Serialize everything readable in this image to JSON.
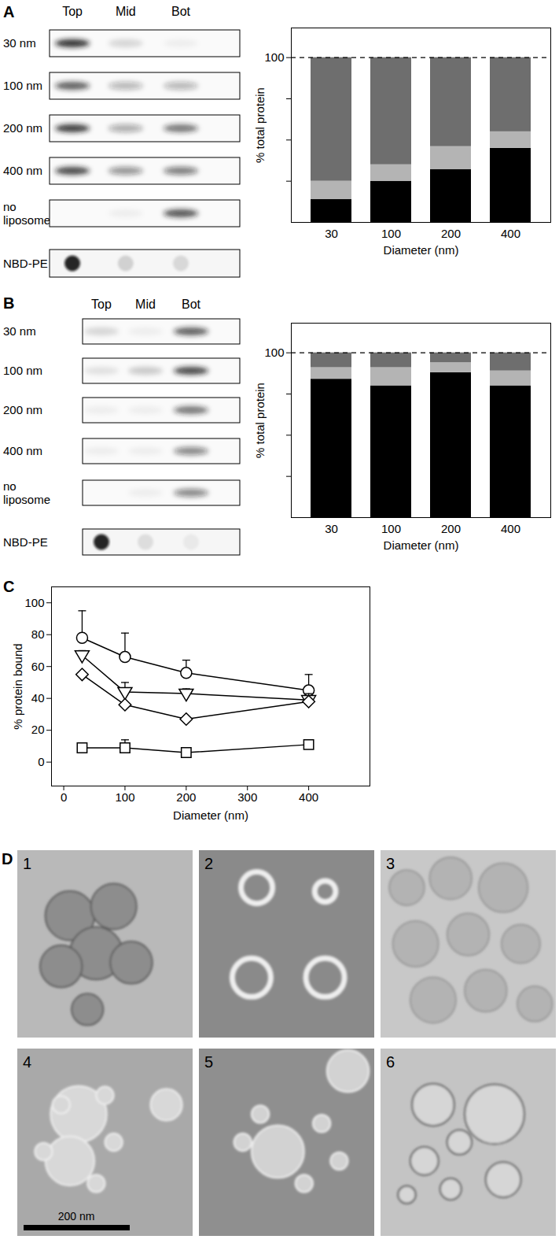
{
  "blots": [
    {
      "panel": "A",
      "columns": [
        "Top",
        "Mid",
        "Bot"
      ],
      "rows": [
        {
          "label": "30 nm",
          "bands": [
            0.9,
            0.15,
            0.05
          ]
        },
        {
          "label": "100 nm",
          "bands": [
            0.7,
            0.3,
            0.3
          ]
        },
        {
          "label": "200 nm",
          "bands": [
            0.85,
            0.35,
            0.6
          ]
        },
        {
          "label": "400 nm",
          "bands": [
            0.8,
            0.45,
            0.55
          ]
        },
        {
          "label": "no liposome",
          "bands": [
            0.0,
            0.05,
            0.75
          ]
        }
      ],
      "dots": {
        "label": "NBD-PE",
        "values": [
          0.9,
          0.15,
          0.12
        ]
      }
    },
    {
      "panel": "B",
      "columns": [
        "Top",
        "Mid",
        "Bot"
      ],
      "rows": [
        {
          "label": "30 nm",
          "bands": [
            0.15,
            0.05,
            0.7
          ]
        },
        {
          "label": "100 nm",
          "bands": [
            0.1,
            0.2,
            0.8
          ]
        },
        {
          "label": "200 nm",
          "bands": [
            0.05,
            0.05,
            0.6
          ]
        },
        {
          "label": "400 nm",
          "bands": [
            0.05,
            0.05,
            0.5
          ]
        },
        {
          "label": "no liposome",
          "bands": [
            0.0,
            0.05,
            0.5
          ]
        }
      ],
      "dots": {
        "label": "NBD-PE",
        "values": [
          0.9,
          0.1,
          0.05
        ]
      }
    }
  ],
  "chart_data": [
    {
      "panel": "A",
      "type": "bar",
      "stacked": true,
      "categories": [
        30,
        100,
        200,
        400
      ],
      "series": [
        {
          "color": "#000000",
          "values": [
            14,
            25,
            32,
            45
          ]
        },
        {
          "color": "#b4b4b4",
          "values": [
            11,
            10,
            14,
            10
          ]
        },
        {
          "color": "#6e6e6e",
          "values": [
            75,
            65,
            54,
            45
          ]
        }
      ],
      "xlabel": "Diameter (nm)",
      "ylabel": "% total protein",
      "ylim": [
        0,
        118
      ],
      "yticks": [
        100
      ],
      "minor_yticks": [
        25,
        50,
        75
      ],
      "reference_line": 100
    },
    {
      "panel": "B",
      "type": "bar",
      "stacked": true,
      "categories": [
        30,
        100,
        200,
        400
      ],
      "series": [
        {
          "color": "#000000",
          "values": [
            84,
            80,
            88,
            80
          ]
        },
        {
          "color": "#b4b4b4",
          "values": [
            7,
            11,
            6,
            9
          ]
        },
        {
          "color": "#6e6e6e",
          "values": [
            9,
            9,
            6,
            11
          ]
        }
      ],
      "xlabel": "Diameter (nm)",
      "ylabel": "% total protein",
      "ylim": [
        0,
        118
      ],
      "yticks": [
        100
      ],
      "minor_yticks": [
        25,
        50,
        75
      ],
      "reference_line": 100
    },
    {
      "panel": "C",
      "type": "line",
      "x": [
        30,
        100,
        200,
        400
      ],
      "series": [
        {
          "marker": "circle",
          "color": "#000000",
          "values": [
            78,
            66,
            56,
            45
          ],
          "errors": [
            17,
            15,
            8,
            10
          ]
        },
        {
          "marker": "triangle-down",
          "color": "#000000",
          "values": [
            67,
            44,
            43,
            39
          ],
          "errors": [
            3,
            6,
            3,
            4
          ]
        },
        {
          "marker": "diamond",
          "color": "#000000",
          "values": [
            55,
            36,
            27,
            38
          ]
        },
        {
          "marker": "square",
          "color": "#000000",
          "values": [
            9,
            9,
            6,
            11
          ],
          "errors": [
            1,
            5,
            2,
            1
          ]
        }
      ],
      "xlabel": "Diameter (nm)",
      "ylabel": "% protein bound",
      "xlim": [
        -20,
        500
      ],
      "xticks": [
        0,
        100,
        200,
        300,
        400
      ],
      "ylim": [
        -15,
        110
      ],
      "yticks": [
        0,
        20,
        40,
        60,
        80,
        100
      ]
    }
  ],
  "micrographs": {
    "panel": "D",
    "images": [
      "1",
      "2",
      "3",
      "4",
      "5",
      "6"
    ],
    "scale_bar": "200 nm"
  }
}
